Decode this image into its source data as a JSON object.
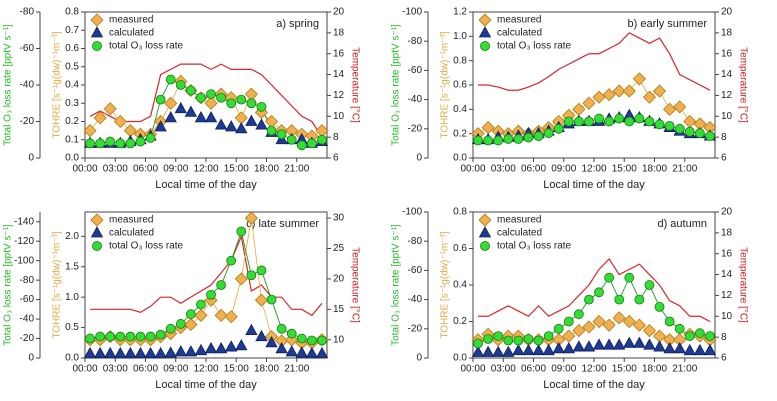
{
  "chart_data": [
    {
      "type": "line",
      "title": "a) spring",
      "xlabel": "Local time of the day",
      "ylabel": "TOHRE [s⁻¹g(dw)⁻¹m⁻³]",
      "y2label": "Temperature [°C]",
      "y3label": "Total O₃ loss rate [pptV s⁻¹]",
      "x": [
        0.5,
        1.5,
        2.5,
        3.5,
        4.5,
        5.5,
        6.5,
        7.5,
        8.5,
        9.5,
        10.5,
        11.5,
        12.5,
        13.5,
        14.5,
        15.5,
        16.5,
        17.5,
        18.5,
        19.5,
        20.5,
        21.5,
        22.5,
        23.5
      ],
      "xlim": [
        0,
        24
      ],
      "xticks": [
        {
          "value": 0,
          "label": "00:00"
        },
        {
          "value": 3,
          "label": "03:00"
        },
        {
          "value": 6,
          "label": "06:00"
        },
        {
          "value": 9,
          "label": "09:00"
        },
        {
          "value": 12,
          "label": "12:00"
        },
        {
          "value": 15,
          "label": "15:00"
        },
        {
          "value": 18,
          "label": "18:00"
        },
        {
          "value": 21,
          "label": "21:00"
        }
      ],
      "ylim": [
        0,
        0.8
      ],
      "yticks": [
        {
          "value": 0,
          "label": "0.0"
        },
        {
          "value": 0.1,
          "label": "0.1"
        },
        {
          "value": 0.2,
          "label": "0.2"
        },
        {
          "value": 0.3,
          "label": "0.3"
        },
        {
          "value": 0.4,
          "label": "0.4"
        },
        {
          "value": 0.5,
          "label": "0.5"
        },
        {
          "value": 0.6,
          "label": "0.6"
        },
        {
          "value": 0.7,
          "label": "0.7"
        },
        {
          "value": 0.8,
          "label": "0.8"
        }
      ],
      "y2lim": [
        6,
        20
      ],
      "y2ticks": [
        6,
        8,
        10,
        12,
        14,
        16,
        18,
        20
      ],
      "y3lim": [
        0,
        -80
      ],
      "y3ticks": [
        0,
        -20,
        -40,
        -60,
        -80
      ],
      "series": [
        {
          "name": "measured",
          "color": "#f0b050",
          "marker": "diamond",
          "line": true,
          "values": [
            0.15,
            0.22,
            0.27,
            0.2,
            0.15,
            0.13,
            0.13,
            0.2,
            0.3,
            0.42,
            0.37,
            0.33,
            0.3,
            0.35,
            0.33,
            0.22,
            0.35,
            0.25,
            0.2,
            0.15,
            0.15,
            0.13,
            0.12,
            0.15
          ]
        },
        {
          "name": "calculated",
          "color": "#1f3a93",
          "marker": "triangle",
          "line": false,
          "values": [
            0.08,
            0.08,
            0.08,
            0.08,
            0.09,
            0.1,
            0.12,
            0.17,
            0.22,
            0.27,
            0.25,
            0.22,
            0.22,
            0.18,
            0.17,
            0.16,
            0.2,
            0.18,
            0.14,
            0.1,
            0.1,
            0.1,
            0.08,
            0.09
          ]
        },
        {
          "name": "total O₃ loss rate",
          "color": "#33dd33",
          "marker": "circle",
          "line": true,
          "axis": "y3",
          "values": [
            -8,
            -8,
            -9,
            -8,
            -8,
            -9,
            -11,
            -32,
            -43,
            -40,
            -37,
            -33,
            -35,
            -33,
            -30,
            -32,
            -30,
            -28,
            -15,
            -13,
            -10,
            -7,
            -8,
            -10
          ]
        },
        {
          "color": "#d62728",
          "marker": "none",
          "line": true,
          "axis": "y2",
          "values": [
            10,
            10.5,
            10,
            9.5,
            9.5,
            9.5,
            10,
            14,
            14.5,
            15,
            15,
            15,
            14.5,
            15,
            14.5,
            14.5,
            14.5,
            14,
            13,
            12,
            11,
            10,
            9.5,
            8
          ]
        }
      ]
    },
    {
      "type": "line",
      "title": "b) early summer",
      "xlabel": "Local time of the day",
      "ylabel": "TOHRE [s⁻¹g(dw)⁻¹m⁻³]",
      "y2label": "Temperature [°C]",
      "y3label": "Total O₃ loss rate [pptV s⁻¹]",
      "x": [
        0.5,
        1.5,
        2.5,
        3.5,
        4.5,
        5.5,
        6.5,
        7.5,
        8.5,
        9.5,
        10.5,
        11.5,
        12.5,
        13.5,
        14.5,
        15.5,
        16.5,
        17.5,
        18.5,
        19.5,
        20.5,
        21.5,
        22.5,
        23.5
      ],
      "xlim": [
        0,
        24
      ],
      "xticks": [
        {
          "value": 0,
          "label": "00:00"
        },
        {
          "value": 3,
          "label": "03:00"
        },
        {
          "value": 6,
          "label": "06:00"
        },
        {
          "value": 9,
          "label": "09:00"
        },
        {
          "value": 12,
          "label": "12:00"
        },
        {
          "value": 15,
          "label": "15:00"
        },
        {
          "value": 18,
          "label": "18:00"
        },
        {
          "value": 21,
          "label": "21:00"
        }
      ],
      "ylim": [
        0,
        1.2
      ],
      "yticks": [
        {
          "value": 0,
          "label": "0.0"
        },
        {
          "value": 0.2,
          "label": "0.2"
        },
        {
          "value": 0.4,
          "label": "0.4"
        },
        {
          "value": 0.6,
          "label": "0.6"
        },
        {
          "value": 0.8,
          "label": "0.8"
        },
        {
          "value": 1.0,
          "label": "1.0"
        },
        {
          "value": 1.2,
          "label": "1.2"
        }
      ],
      "y2lim": [
        6,
        20
      ],
      "y2ticks": [
        6,
        8,
        10,
        12,
        14,
        16,
        18,
        20
      ],
      "y3lim": [
        0,
        -100
      ],
      "y3ticks": [
        0,
        -20,
        -40,
        -60,
        -80,
        -100
      ],
      "series": [
        {
          "name": "measured",
          "color": "#f0b050",
          "marker": "diamond",
          "line": true,
          "values": [
            0.2,
            0.25,
            0.22,
            0.2,
            0.22,
            0.2,
            0.22,
            0.25,
            0.3,
            0.35,
            0.4,
            0.45,
            0.5,
            0.52,
            0.55,
            0.55,
            0.65,
            0.5,
            0.55,
            0.4,
            0.42,
            0.3,
            0.28,
            0.25
          ]
        },
        {
          "name": "calculated",
          "color": "#1f3a93",
          "marker": "triangle",
          "line": false,
          "values": [
            0.15,
            0.15,
            0.17,
            0.17,
            0.18,
            0.2,
            0.2,
            0.22,
            0.25,
            0.28,
            0.3,
            0.3,
            0.3,
            0.32,
            0.33,
            0.35,
            0.33,
            0.3,
            0.28,
            0.25,
            0.22,
            0.2,
            0.2,
            0.18
          ]
        },
        {
          "name": "total O₃ loss rate",
          "color": "#33dd33",
          "marker": "circle",
          "line": true,
          "axis": "y3",
          "values": [
            -12,
            -12,
            -12,
            -13,
            -13,
            -14,
            -15,
            -17,
            -20,
            -25,
            -25,
            -25,
            -27,
            -25,
            -27,
            -25,
            -27,
            -25,
            -23,
            -22,
            -20,
            -18,
            -17,
            -15
          ]
        },
        {
          "color": "#d62728",
          "marker": "none",
          "line": true,
          "axis": "y2",
          "values": [
            13,
            13,
            12.8,
            12.5,
            12.5,
            12.8,
            13.2,
            13.8,
            14.5,
            15,
            15.5,
            16,
            16,
            16.5,
            17,
            18,
            17.5,
            17,
            17.5,
            16,
            14,
            13.5,
            13,
            12.5
          ]
        }
      ]
    },
    {
      "type": "line",
      "title": "c) late summer",
      "xlabel": "Local time of the day",
      "ylabel": "TOHRE [s⁻¹g(dw)⁻¹m⁻³]",
      "y2label": "Temperature [°C]",
      "y3label": "Total O₃ loss rate [pptV s⁻¹]",
      "x": [
        0.5,
        1.5,
        2.5,
        3.5,
        4.5,
        5.5,
        6.5,
        7.5,
        8.5,
        9.5,
        10.5,
        11.5,
        12.5,
        13.5,
        14.5,
        15.5,
        16.5,
        17.5,
        18.5,
        19.5,
        20.5,
        21.5,
        22.5,
        23.5
      ],
      "xlim": [
        0,
        24
      ],
      "xticks": [
        {
          "value": 0,
          "label": "00:00"
        },
        {
          "value": 3,
          "label": "03:00"
        },
        {
          "value": 6,
          "label": "06:00"
        },
        {
          "value": 9,
          "label": "09:00"
        },
        {
          "value": 12,
          "label": "12:00"
        },
        {
          "value": 15,
          "label": "15:00"
        },
        {
          "value": 18,
          "label": "18:00"
        },
        {
          "value": 21,
          "label": "21:00"
        }
      ],
      "ylim": [
        0,
        2.4
      ],
      "yticks": [
        {
          "value": 0,
          "label": "0.0"
        },
        {
          "value": 0.5,
          "label": "0.5"
        },
        {
          "value": 1.0,
          "label": "1.0"
        },
        {
          "value": 1.5,
          "label": "1.5"
        },
        {
          "value": 2.0,
          "label": "2.0"
        }
      ],
      "y2lim": [
        7,
        31
      ],
      "y2ticks": [
        10,
        15,
        20,
        25,
        30
      ],
      "y3lim": [
        0,
        -150
      ],
      "y3ticks": [
        0,
        -20,
        -40,
        -60,
        -80,
        -100,
        -120,
        -140
      ],
      "series": [
        {
          "name": "measured",
          "color": "#f0b050",
          "marker": "diamond",
          "line": true,
          "values": [
            0.3,
            0.3,
            0.35,
            0.3,
            0.3,
            0.3,
            0.3,
            0.35,
            0.4,
            0.5,
            0.55,
            0.7,
            0.95,
            0.7,
            0.68,
            1.3,
            2.3,
            0.95,
            0.35,
            0.28,
            0.3,
            0.25,
            0.25,
            0.3
          ]
        },
        {
          "name": "calculated",
          "color": "#1f3a93",
          "marker": "triangle",
          "line": false,
          "values": [
            0.07,
            0.07,
            0.07,
            0.07,
            0.07,
            0.07,
            0.07,
            0.07,
            0.08,
            0.1,
            0.1,
            0.12,
            0.15,
            0.15,
            0.18,
            0.2,
            0.45,
            0.35,
            0.25,
            0.15,
            0.1,
            0.08,
            0.07,
            0.07
          ]
        },
        {
          "name": "total O₃ loss rate",
          "color": "#33dd33",
          "marker": "circle",
          "line": true,
          "axis": "y3",
          "values": [
            -20,
            -22,
            -22,
            -22,
            -22,
            -22,
            -22,
            -24,
            -30,
            -35,
            -45,
            -55,
            -65,
            -75,
            -100,
            -130,
            -85,
            -90,
            -60,
            -30,
            -25,
            -20,
            -18,
            -18
          ]
        },
        {
          "color": "#d62728",
          "marker": "none",
          "line": true,
          "axis": "y2",
          "values": [
            15,
            15,
            15,
            15,
            15,
            14.5,
            15.5,
            17,
            17,
            16,
            17,
            18,
            19,
            21,
            23,
            27,
            18,
            19,
            17,
            17,
            15,
            15,
            14,
            16
          ]
        }
      ]
    },
    {
      "type": "line",
      "title": "d) autumn",
      "xlabel": "Local time of the day",
      "ylabel": "TOHRE [s⁻¹g(dw)⁻¹m⁻³]",
      "y2label": "Temperature [°C]",
      "y3label": "Total O₃ loss rate [pptV s⁻¹]",
      "x": [
        0.5,
        1.5,
        2.5,
        3.5,
        4.5,
        5.5,
        6.5,
        7.5,
        8.5,
        9.5,
        10.5,
        11.5,
        12.5,
        13.5,
        14.5,
        15.5,
        16.5,
        17.5,
        18.5,
        19.5,
        20.5,
        21.5,
        22.5,
        23.5
      ],
      "xlim": [
        0,
        24
      ],
      "xticks": [
        {
          "value": 0,
          "label": "00:00"
        },
        {
          "value": 3,
          "label": "03:00"
        },
        {
          "value": 6,
          "label": "06:00"
        },
        {
          "value": 9,
          "label": "09:00"
        },
        {
          "value": 12,
          "label": "12:00"
        },
        {
          "value": 15,
          "label": "15:00"
        },
        {
          "value": 18,
          "label": "18:00"
        },
        {
          "value": 21,
          "label": "21:00"
        }
      ],
      "ylim": [
        0,
        0.8
      ],
      "yticks": [
        {
          "value": 0,
          "label": "0.0"
        },
        {
          "value": 0.2,
          "label": "0.2"
        },
        {
          "value": 0.4,
          "label": "0.4"
        },
        {
          "value": 0.6,
          "label": "0.6"
        },
        {
          "value": 0.8,
          "label": "0.8"
        }
      ],
      "y2lim": [
        6,
        20
      ],
      "y2ticks": [
        6,
        8,
        10,
        12,
        14,
        16,
        18,
        20
      ],
      "y3lim": [
        0,
        -100
      ],
      "y3ticks": [
        0,
        -20,
        -40,
        -60,
        -80,
        -100
      ],
      "series": [
        {
          "name": "measured",
          "color": "#f0b050",
          "marker": "diamond",
          "line": true,
          "values": [
            0.1,
            0.13,
            0.1,
            0.12,
            0.12,
            0.1,
            0.1,
            0.1,
            0.1,
            0.12,
            0.15,
            0.17,
            0.2,
            0.18,
            0.22,
            0.2,
            0.18,
            0.15,
            0.12,
            0.1,
            0.1,
            0.13,
            0.12,
            0.1
          ]
        },
        {
          "name": "calculated",
          "color": "#1f3a93",
          "marker": "triangle",
          "line": false,
          "values": [
            0.03,
            0.03,
            0.03,
            0.03,
            0.04,
            0.04,
            0.04,
            0.04,
            0.05,
            0.05,
            0.06,
            0.06,
            0.07,
            0.07,
            0.07,
            0.08,
            0.08,
            0.07,
            0.06,
            0.05,
            0.05,
            0.04,
            0.04,
            0.04
          ]
        },
        {
          "name": "total O₃ loss rate",
          "color": "#33dd33",
          "marker": "circle",
          "line": true,
          "axis": "y3",
          "values": [
            -10,
            -13,
            -15,
            -12,
            -12,
            -13,
            -12,
            -15,
            -20,
            -25,
            -30,
            -40,
            -45,
            -55,
            -40,
            -55,
            -40,
            -50,
            -35,
            -25,
            -20,
            -15,
            -17,
            -15
          ]
        },
        {
          "color": "#d62728",
          "marker": "none",
          "line": true,
          "axis": "y2",
          "values": [
            10,
            10,
            10.5,
            11,
            10.5,
            10,
            11,
            10,
            10.5,
            11,
            12,
            13,
            14.5,
            15.5,
            14,
            14.5,
            15,
            14,
            13,
            11.5,
            11,
            10,
            10,
            9.5
          ]
        }
      ]
    }
  ]
}
